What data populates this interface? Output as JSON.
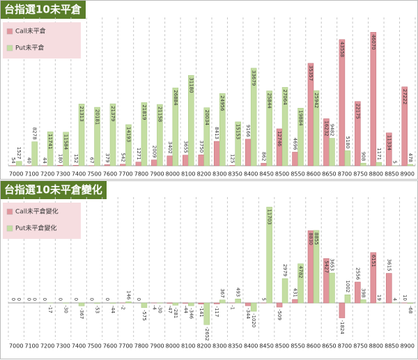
{
  "chart_data": [
    {
      "type": "bar",
      "title": "台指選10未平倉",
      "categories": [
        "7000",
        "7100",
        "7200",
        "7300",
        "7400",
        "7500",
        "7600",
        "7700",
        "7800",
        "7900",
        "8000",
        "8100",
        "8200",
        "8300",
        "8350",
        "8400",
        "8450",
        "8500",
        "8550",
        "8600",
        "8650",
        "8700",
        "8750",
        "8800",
        "8850",
        "8900"
      ],
      "series": [
        {
          "name": "Call未平倉",
          "color": "#e1959c",
          "values": [
            54,
            40,
            44,
            180,
            152,
            67,
            379,
            542,
            1271,
            2009,
            3402,
            3655,
            3750,
            8413,
            125,
            9166,
            862,
            12746,
            4696,
            35357,
            16232,
            43558,
            22175,
            46070,
            11334,
            27222
          ]
        },
        {
          "name": "Put未平倉",
          "color": "#c4dea2",
          "values": [
            1527,
            8278,
            11741,
            11584,
            21313,
            20181,
            21379,
            14193,
            21819,
            21158,
            26884,
            31180,
            20034,
            24956,
            15153,
            33679,
            25844,
            27064,
            19884,
            25942,
            9482,
            5180,
            908,
            1171,
            5,
            478
          ]
        }
      ],
      "ylim": [
        0,
        50000
      ]
    },
    {
      "type": "bar",
      "title": "台指選10未平倉變化",
      "categories": [
        "7000",
        "7100",
        "7200",
        "7300",
        "7400",
        "7500",
        "7600",
        "7700",
        "7800",
        "7900",
        "8000",
        "8100",
        "8200",
        "8300",
        "8350",
        "8400",
        "8450",
        "8500",
        "8550",
        "8600",
        "8650",
        "8700",
        "8750",
        "8800",
        "8850",
        "8900"
      ],
      "series": [
        {
          "name": "Call未平倉變化",
          "color": "#e1959c",
          "values": [
            0,
            0,
            0,
            0,
            0,
            0,
            0,
            -2,
            0,
            -4,
            -47,
            -44,
            -141,
            -117,
            -1,
            -344,
            5,
            -509,
            431,
            8830,
            5427,
            -1824,
            2556,
            6151,
            3615,
            10
          ]
        },
        {
          "name": "Put未平倉變化",
          "color": "#c4dea2",
          "values": [
            0,
            0,
            -17,
            -30,
            -367,
            -53,
            -44,
            146,
            -575,
            -30,
            -281,
            -346,
            -2652,
            367,
            493,
            -1020,
            11703,
            2979,
            4782,
            8855,
            3653,
            1002,
            398,
            19,
            4,
            -68
          ]
        }
      ],
      "ylim": [
        -4500,
        12500
      ]
    }
  ]
}
